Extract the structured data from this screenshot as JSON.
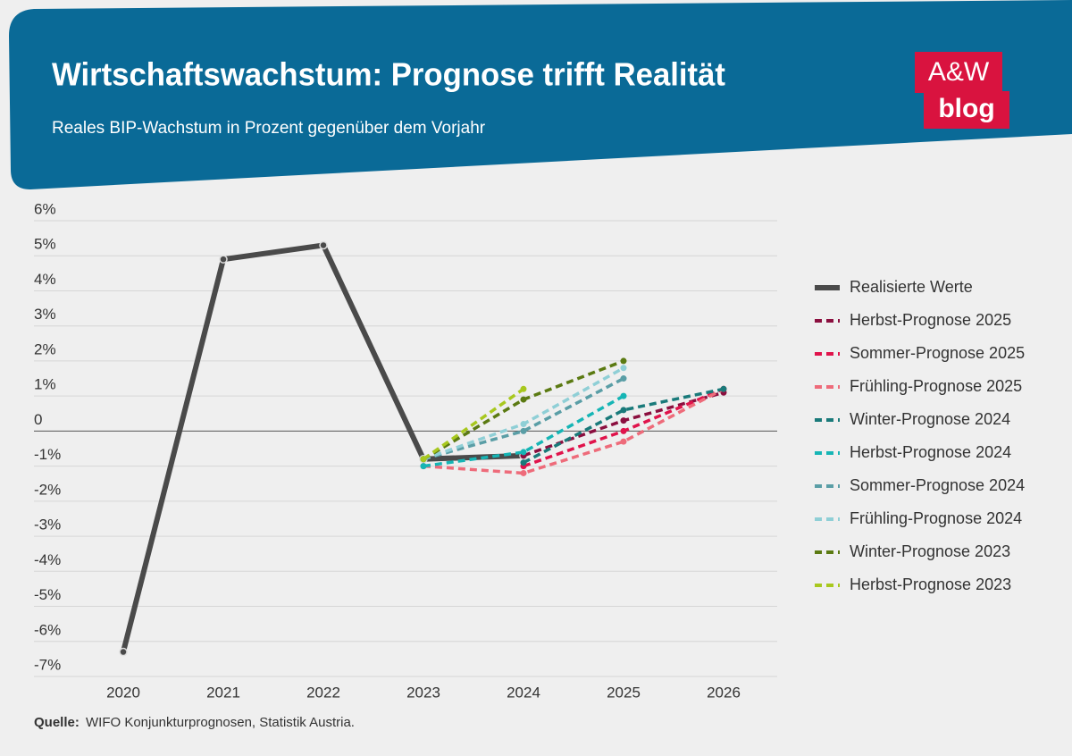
{
  "chart_data": {
    "type": "line",
    "title": "Wirtschaftswachstum: Prognose trifft Realität",
    "subtitle": "Reales BIP-Wachstum in Prozent gegenüber dem Vorjahr",
    "logo": {
      "top": "A&W",
      "bottom": "blog"
    },
    "source_label": "Quelle:",
    "source": "WIFO Konjunkturprognosen, Statistik Austria.",
    "categories": [
      "2020",
      "2021",
      "2022",
      "2023",
      "2024",
      "2025",
      "2026"
    ],
    "ylim": [
      -7,
      6
    ],
    "yticks": [
      {
        "value": 6,
        "label": "6%"
      },
      {
        "value": 5,
        "label": "5%"
      },
      {
        "value": 4,
        "label": "4%"
      },
      {
        "value": 3,
        "label": "3%"
      },
      {
        "value": 2,
        "label": "2%"
      },
      {
        "value": 1,
        "label": "1%"
      },
      0,
      {
        "value": -1,
        "label": "-1%"
      },
      {
        "value": -2,
        "label": "-2%"
      },
      {
        "value": -3,
        "label": "-3%"
      },
      {
        "value": -4,
        "label": "-4%"
      },
      {
        "value": -5,
        "label": "-5%"
      },
      {
        "value": -6,
        "label": "-6%"
      },
      {
        "value": -7,
        "label": "-7%"
      }
    ],
    "grid": true,
    "legend": "right",
    "series": [
      {
        "name": "Realisierte Werte",
        "color": "#4a4a4a",
        "dashed": false,
        "values": [
          -6.3,
          4.9,
          5.3,
          -0.8,
          -0.7,
          null,
          null
        ]
      },
      {
        "name": "Herbst-Prognose 2025",
        "color": "#8b0f3f",
        "dashed": true,
        "values": [
          null,
          null,
          null,
          null,
          -0.7,
          0.3,
          1.1
        ]
      },
      {
        "name": "Sommer-Prognose 2025",
        "color": "#e0134b",
        "dashed": true,
        "values": [
          null,
          null,
          null,
          null,
          -1.0,
          0.0,
          1.2
        ]
      },
      {
        "name": "Frühling-Prognose 2025",
        "color": "#ee6b7a",
        "dashed": true,
        "values": [
          null,
          null,
          null,
          -1.0,
          -1.2,
          -0.3,
          1.2
        ]
      },
      {
        "name": "Winter-Prognose 2024",
        "color": "#1a7a7a",
        "dashed": true,
        "values": [
          null,
          null,
          null,
          null,
          -0.9,
          0.6,
          1.2
        ]
      },
      {
        "name": "Herbst-Prognose 2024",
        "color": "#16b5b5",
        "dashed": true,
        "values": [
          null,
          null,
          null,
          -1.0,
          -0.6,
          1.0,
          null
        ]
      },
      {
        "name": "Sommer-Prognose 2024",
        "color": "#5a9ea6",
        "dashed": true,
        "values": [
          null,
          null,
          null,
          -0.8,
          0.0,
          1.5,
          null
        ]
      },
      {
        "name": "Frühling-Prognose 2024",
        "color": "#8fcfd6",
        "dashed": true,
        "values": [
          null,
          null,
          null,
          -0.8,
          0.2,
          1.8,
          null
        ]
      },
      {
        "name": "Winter-Prognose 2023",
        "color": "#5b7a12",
        "dashed": true,
        "values": [
          null,
          null,
          null,
          -0.8,
          0.9,
          2.0,
          null
        ]
      },
      {
        "name": "Herbst-Prognose 2023",
        "color": "#a8c81e",
        "dashed": true,
        "values": [
          null,
          null,
          null,
          -0.8,
          1.2,
          null,
          null
        ]
      }
    ]
  }
}
